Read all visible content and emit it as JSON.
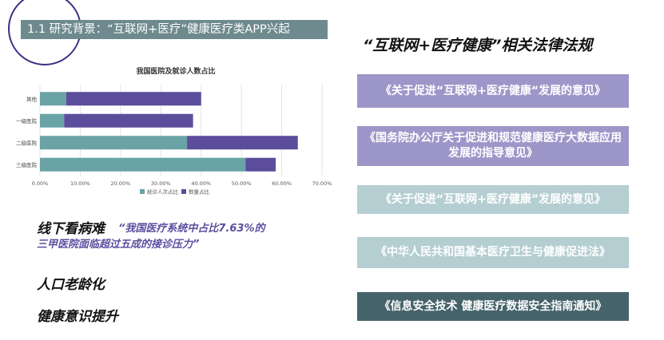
{
  "header": {
    "title": "1.1 研究背景：“互联网+医疗”健康医疗类APP兴起"
  },
  "chart_data": {
    "type": "bar",
    "orientation": "horizontal",
    "stacked": true,
    "title": "我国医院及就诊人数占比",
    "categories": [
      "其他",
      "一级医院",
      "二级医院",
      "三级医院"
    ],
    "series": [
      {
        "name": "就诊人次占比",
        "values": [
          6.5,
          6.0,
          36.5,
          51.0
        ],
        "color": "#6aa3a5"
      },
      {
        "name": "数量占比",
        "values": [
          33.5,
          32.0,
          27.5,
          7.5
        ],
        "color": "#5c4d9c"
      }
    ],
    "xlim": [
      0,
      70
    ],
    "xticks": [
      "0.00%",
      "10.00%",
      "20.00%",
      "30.00%",
      "40.00%",
      "50.00%",
      "60.00%",
      "70.00%"
    ],
    "legend": "bottom",
    "grid": true
  },
  "right": {
    "title": "“互联网+医疗健康”相关法律法规",
    "laws": [
      {
        "text": "《关于促进“互联网+医疗健康“发展的意见》",
        "color": "#9d96c8",
        "text_color": "#ffffff"
      },
      {
        "text": "《国务院办公厅关于促进和规范健康医疗大数据应用发展的指导意见》",
        "color": "#9d96c8",
        "text_color": "#ffffff"
      },
      {
        "text": "《关于促进“互联网+医疗健康”发展的意见》",
        "color": "#b5ced2",
        "text_color": "#ffffff"
      },
      {
        "text": "《中华人民共和国基本医疗卫生与健康促进法》",
        "color": "#b5ced2",
        "text_color": "#ffffff"
      },
      {
        "text": "《信息安全技术 健康医疗数据安全指南通知》",
        "color": "#45636a",
        "text_color": "#ffffff"
      }
    ]
  },
  "notes": {
    "note1": "线下看病难",
    "quote_line1": "“我国医疗系统中占比7.63%的",
    "quote_line2": "三甲医院面临超过五成的接诊压力”",
    "note2": "人口老龄化",
    "note3": "健康意识提升"
  }
}
